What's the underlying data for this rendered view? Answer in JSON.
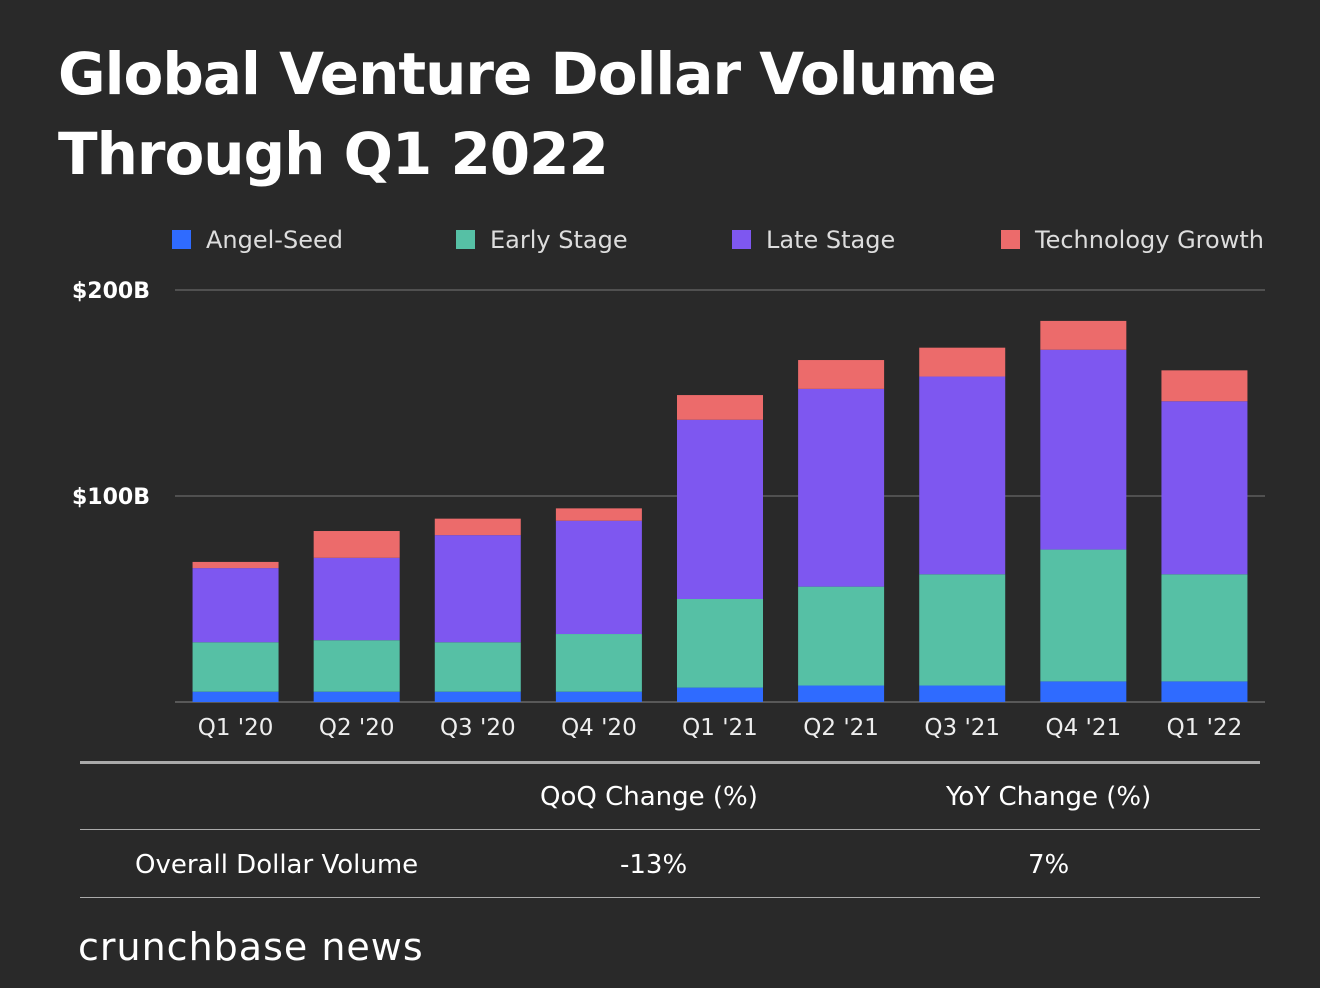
{
  "title": "Global Venture Dollar Volume Through Q1 2022",
  "colors": {
    "angel": "#2f6bff",
    "early": "#56c0a5",
    "late": "#7e57f0",
    "tech": "#ec6b6b",
    "background": "#292929"
  },
  "chart_data": {
    "type": "bar",
    "stacked": true,
    "title": "Global Venture Dollar Volume Through Q1 2022",
    "xlabel": "",
    "ylabel": "",
    "ylim": [
      0,
      200
    ],
    "yticks": [
      {
        "value": 100,
        "label": "$100B"
      },
      {
        "value": 200,
        "label": "$200B"
      }
    ],
    "categories": [
      "Q1 '20",
      "Q2 '20",
      "Q3 '20",
      "Q4 '20",
      "Q1 '21",
      "Q2 '21",
      "Q3 '21",
      "Q4 '21",
      "Q1 '22"
    ],
    "series": [
      {
        "name": "Angel-Seed",
        "color": "#2f6bff",
        "values": [
          5,
          5,
          5,
          5,
          7,
          8,
          8,
          10,
          10
        ]
      },
      {
        "name": "Early Stage",
        "color": "#56c0a5",
        "values": [
          24,
          25,
          24,
          28,
          43,
          48,
          54,
          64,
          52
        ]
      },
      {
        "name": "Late Stage",
        "color": "#7e57f0",
        "values": [
          36,
          40,
          52,
          55,
          87,
          96,
          96,
          97,
          84
        ]
      },
      {
        "name": "Technology Growth",
        "color": "#ec6b6b",
        "values": [
          3,
          13,
          8,
          6,
          12,
          14,
          14,
          14,
          15
        ]
      }
    ],
    "legend": "top",
    "grid": true
  },
  "table": {
    "headers": [
      "QoQ Change (%)",
      "YoY Change (%)"
    ],
    "row_label": "Overall Dollar Volume",
    "values": [
      "-13%",
      "7%"
    ]
  },
  "brand": "crunchbase news"
}
